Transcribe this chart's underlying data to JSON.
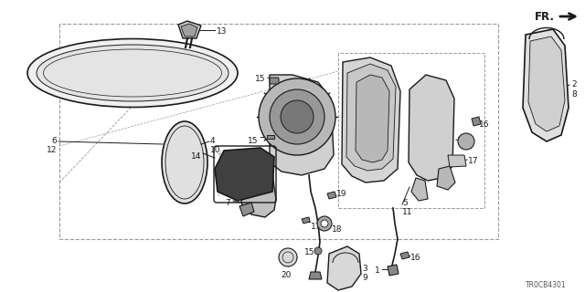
{
  "bg_color": "#ffffff",
  "line_color": "#1a1a1a",
  "gray_light": "#d8d8d8",
  "gray_med": "#b0b0b0",
  "gray_dark": "#888888",
  "dashed_color": "#999999",
  "title_code": "TR0CB4301",
  "font_size": 6.5,
  "fig_w": 6.4,
  "fig_h": 3.2,
  "dpi": 100
}
